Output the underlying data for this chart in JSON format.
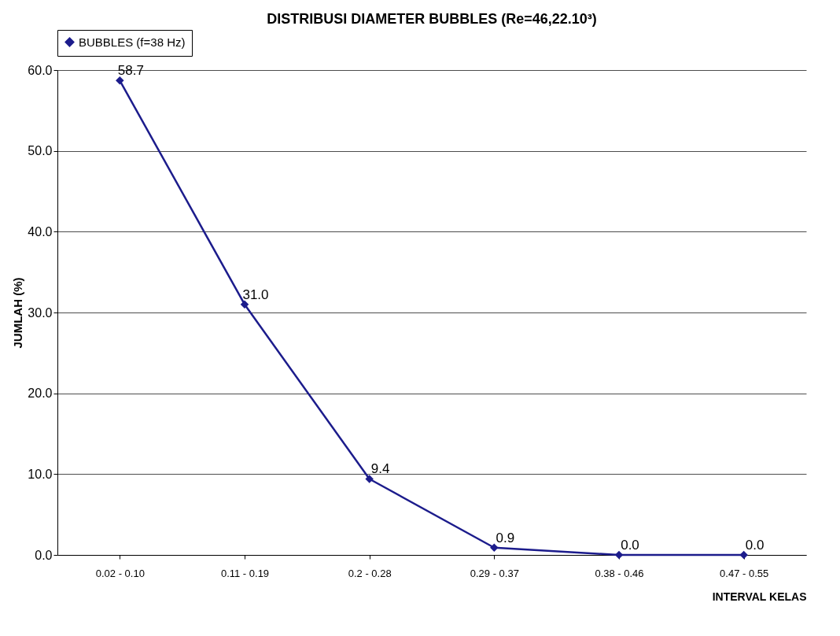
{
  "chart_data": {
    "type": "line",
    "title": "DISTRIBUSI DIAMETER BUBBLES (Re=46,22.10³)",
    "xlabel": "INTERVAL KELAS",
    "ylabel": "JUMLAH (%)",
    "categories": [
      "0.02 - 0.10",
      "0.11 - 0.19",
      "0.2 - 0.28",
      "0.29 - 0.37",
      "0.38 - 0.46",
      "0.47 - 0.55"
    ],
    "series": [
      {
        "name": "BUBBLES (f=38 Hz)",
        "color": "#1c1c8c",
        "values": [
          58.7,
          31.0,
          9.4,
          0.9,
          0.0,
          0.0
        ],
        "value_labels": [
          "58.7",
          "31.0",
          "9.4",
          "0.9",
          "0.0",
          "0.0"
        ]
      }
    ],
    "ylim": [
      0,
      60
    ],
    "yticks": [
      {
        "value": 0,
        "label": "0.0"
      },
      {
        "value": 10,
        "label": "10.0"
      },
      {
        "value": 20,
        "label": "20.0"
      },
      {
        "value": 30,
        "label": "30.0"
      },
      {
        "value": 40,
        "label": "40.0"
      },
      {
        "value": 50,
        "label": "50.0"
      },
      {
        "value": 60,
        "label": "60.0"
      }
    ],
    "grid": "y",
    "legend": "top",
    "marker": "diamond",
    "line_style": "solid"
  }
}
